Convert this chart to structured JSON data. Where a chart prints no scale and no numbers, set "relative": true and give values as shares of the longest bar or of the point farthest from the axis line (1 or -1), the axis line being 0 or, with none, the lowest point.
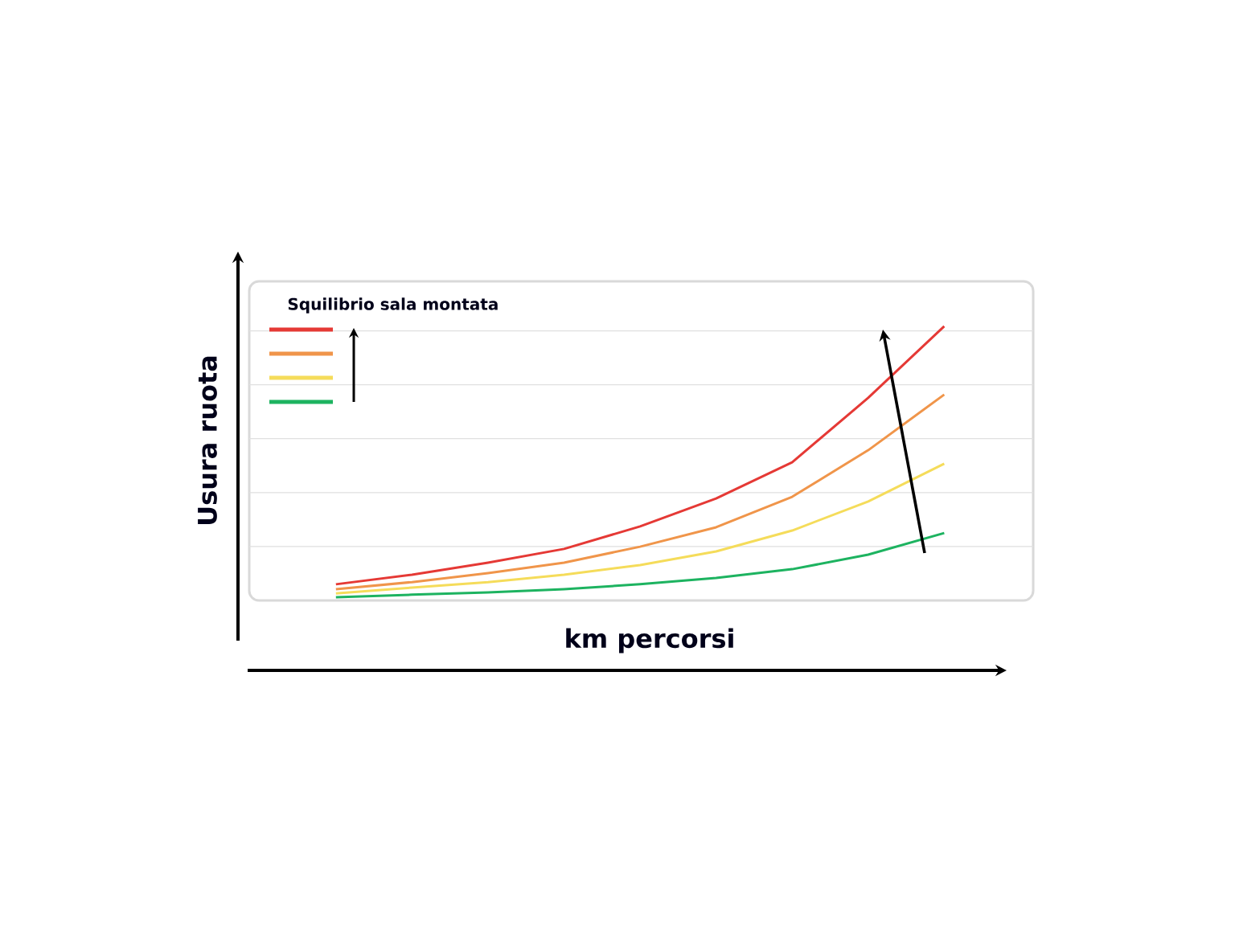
{
  "chart_data": {
    "type": "line",
    "relative": true,
    "xlabel": "km percorsi",
    "ylabel": "Usura ruota",
    "legend_title": "Squilibrio sala montata",
    "grid": "y",
    "marker": "none",
    "line_style": "solid",
    "categories": [
      null,
      null,
      null,
      null,
      null,
      null,
      null,
      null,
      null
    ],
    "series": [
      {
        "color": "#e53935",
        "values": [
          0.059,
          0.094,
          0.138,
          0.188,
          0.27,
          0.372,
          0.504,
          0.739,
          1.0
        ]
      },
      {
        "color": "#f0954a",
        "values": [
          0.041,
          0.067,
          0.1,
          0.138,
          0.196,
          0.267,
          0.378,
          0.548,
          0.751
        ]
      },
      {
        "color": "#f5dc5a",
        "values": [
          0.026,
          0.047,
          0.067,
          0.094,
          0.129,
          0.179,
          0.255,
          0.361,
          0.499
        ]
      },
      {
        "color": "#1db360",
        "values": [
          0.012,
          0.021,
          0.029,
          0.041,
          0.059,
          0.082,
          0.114,
          0.167,
          0.246
        ]
      }
    ]
  }
}
